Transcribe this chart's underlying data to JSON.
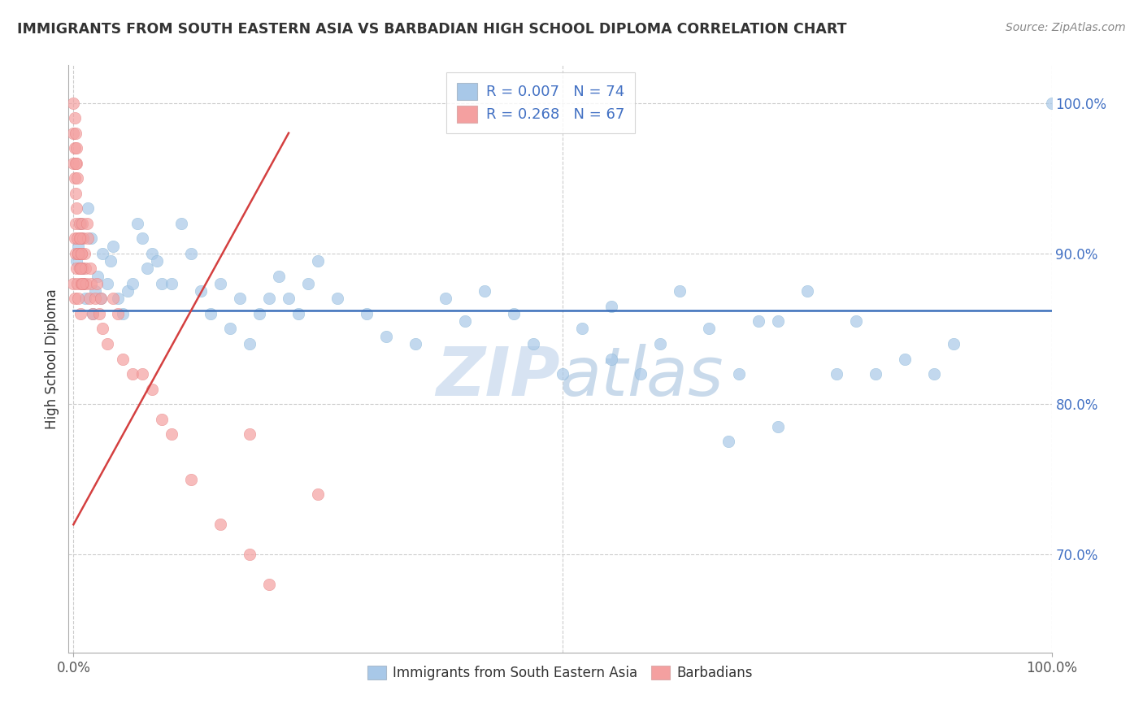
{
  "title": "IMMIGRANTS FROM SOUTH EASTERN ASIA VS BARBADIAN HIGH SCHOOL DIPLOMA CORRELATION CHART",
  "source": "Source: ZipAtlas.com",
  "ylabel": "High School Diploma",
  "blue_R": 0.007,
  "blue_N": 74,
  "pink_R": 0.268,
  "pink_N": 67,
  "blue_color": "#a8c8e8",
  "pink_color": "#f4a0a0",
  "blue_edge_color": "#7aaed0",
  "pink_edge_color": "#e07070",
  "blue_line_color": "#3a6fba",
  "pink_line_color": "#d44040",
  "ytick_color": "#4472c4",
  "legend_label_blue": "Immigrants from South Eastern Asia",
  "legend_label_pink": "Barbadians",
  "watermark": "ZIPatlas",
  "blue_x": [
    0.005,
    0.008,
    0.003,
    0.006,
    0.01,
    0.012,
    0.007,
    0.015,
    0.009,
    0.02,
    0.018,
    0.025,
    0.022,
    0.03,
    0.028,
    0.035,
    0.04,
    0.038,
    0.045,
    0.05,
    0.055,
    0.06,
    0.065,
    0.07,
    0.075,
    0.08,
    0.085,
    0.09,
    0.1,
    0.11,
    0.12,
    0.13,
    0.14,
    0.15,
    0.16,
    0.17,
    0.18,
    0.19,
    0.2,
    0.21,
    0.22,
    0.23,
    0.24,
    0.25,
    0.27,
    0.3,
    0.32,
    0.35,
    0.38,
    0.4,
    0.42,
    0.45,
    0.47,
    0.5,
    0.52,
    0.55,
    0.58,
    0.6,
    0.62,
    0.65,
    0.68,
    0.7,
    0.72,
    0.75,
    0.78,
    0.8,
    0.82,
    0.85,
    0.88,
    0.9,
    1.0,
    0.67,
    0.72,
    0.55
  ],
  "blue_y": [
    0.905,
    0.91,
    0.895,
    0.9,
    0.88,
    0.87,
    0.92,
    0.93,
    0.89,
    0.86,
    0.91,
    0.885,
    0.875,
    0.9,
    0.87,
    0.88,
    0.905,
    0.895,
    0.87,
    0.86,
    0.875,
    0.88,
    0.92,
    0.91,
    0.89,
    0.9,
    0.895,
    0.88,
    0.88,
    0.92,
    0.9,
    0.875,
    0.86,
    0.88,
    0.85,
    0.87,
    0.84,
    0.86,
    0.87,
    0.885,
    0.87,
    0.86,
    0.88,
    0.895,
    0.87,
    0.86,
    0.845,
    0.84,
    0.87,
    0.855,
    0.875,
    0.86,
    0.84,
    0.82,
    0.85,
    0.83,
    0.82,
    0.84,
    0.875,
    0.85,
    0.82,
    0.855,
    0.855,
    0.875,
    0.82,
    0.855,
    0.82,
    0.83,
    0.82,
    0.84,
    1.0,
    0.775,
    0.785,
    0.865
  ],
  "pink_x": [
    0.0,
    0.001,
    0.001,
    0.002,
    0.002,
    0.003,
    0.003,
    0.004,
    0.004,
    0.005,
    0.005,
    0.006,
    0.006,
    0.007,
    0.007,
    0.008,
    0.008,
    0.009,
    0.009,
    0.01,
    0.01,
    0.011,
    0.012,
    0.013,
    0.014,
    0.015,
    0.016,
    0.017,
    0.018,
    0.02,
    0.022,
    0.024,
    0.026,
    0.028,
    0.03,
    0.035,
    0.04,
    0.045,
    0.05,
    0.06,
    0.07,
    0.08,
    0.09,
    0.1,
    0.12,
    0.15,
    0.18,
    0.2,
    0.0,
    0.001,
    0.002,
    0.003,
    0.004,
    0.0,
    0.001,
    0.002,
    0.003,
    0.0,
    0.001,
    0.002,
    0.18,
    0.25,
    0.005,
    0.006,
    0.007,
    0.008,
    0.009
  ],
  "pink_y": [
    0.88,
    0.87,
    0.91,
    0.9,
    0.92,
    0.89,
    0.93,
    0.91,
    0.88,
    0.9,
    0.87,
    0.92,
    0.89,
    0.91,
    0.86,
    0.9,
    0.88,
    0.89,
    0.92,
    0.91,
    0.88,
    0.9,
    0.89,
    0.88,
    0.92,
    0.91,
    0.87,
    0.89,
    0.88,
    0.86,
    0.87,
    0.88,
    0.86,
    0.87,
    0.85,
    0.84,
    0.87,
    0.86,
    0.83,
    0.82,
    0.82,
    0.81,
    0.79,
    0.78,
    0.75,
    0.72,
    0.7,
    0.68,
    0.96,
    0.95,
    0.94,
    0.96,
    0.95,
    0.98,
    0.97,
    0.96,
    0.97,
    1.0,
    0.99,
    0.98,
    0.78,
    0.74,
    0.9,
    0.91,
    0.89,
    0.9,
    0.88
  ]
}
